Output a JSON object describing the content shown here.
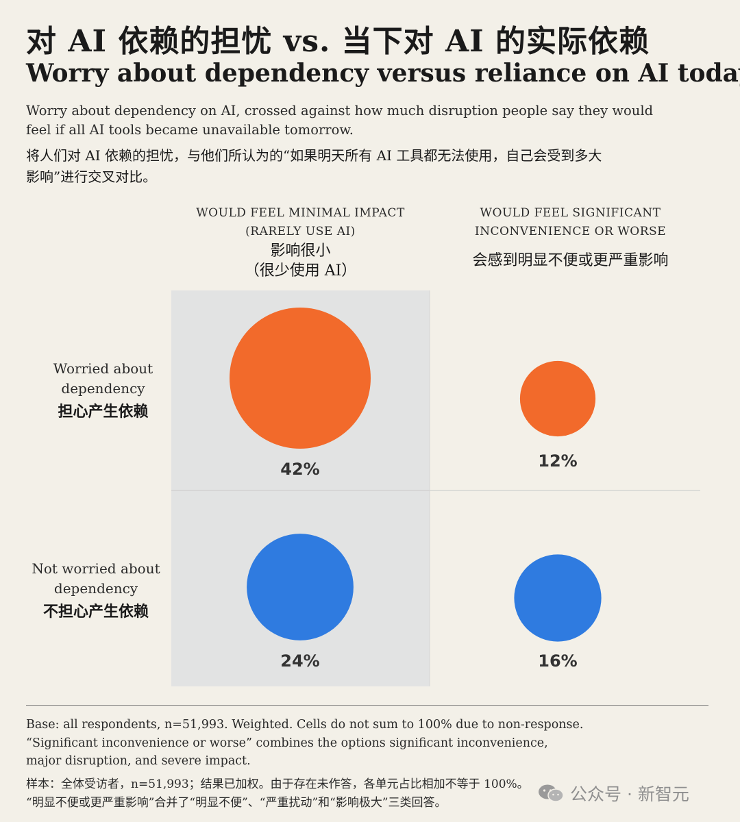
{
  "header": {
    "title_zh": "对 AI 依赖的担忧 vs. 当下对 AI 的实际依赖",
    "title_en": "Worry about dependency versus reliance on AI today",
    "subtitle_en": "Worry about dependency on AI, crossed against how much disruption people say they would feel if all AI tools became unavailable tomorrow.",
    "subtitle_zh": "将人们对 AI 依赖的担忧，与他们所认为的“如果明天所有 AI 工具都无法使用，自己会受到多大影响”进行交叉对比。"
  },
  "chart_data": {
    "type": "bubble-matrix",
    "columns": [
      {
        "en_line1": "WOULD FEEL MINIMAL IMPACT",
        "en_line2": "(RARELY USE AI)",
        "zh_line1": "影响很小",
        "zh_line2": "（很少使用 AI）"
      },
      {
        "en_line1": "WOULD FEEL SIGNIFICANT",
        "en_line2": "INCONVENIENCE OR WORSE",
        "zh_line1": "会感到明显不便或更严重影响"
      }
    ],
    "rows": [
      {
        "en_line1": "Worried about",
        "en_line2": "dependency",
        "zh": "担心产生依赖",
        "color": "#f26a2b"
      },
      {
        "en_line1": "Not worried about",
        "en_line2": "dependency",
        "zh": "不担心产生依赖",
        "color": "#2f7be0"
      }
    ],
    "values": [
      [
        42,
        12
      ],
      [
        24,
        16
      ]
    ],
    "labels": [
      [
        "42%",
        "12%"
      ],
      [
        "24%",
        "16%"
      ]
    ],
    "colors": {
      "worried": "#f26a2b",
      "not_worried": "#2f7be0",
      "highlight_column": "#e2e3e3"
    }
  },
  "footnote": {
    "en_line1": "Base: all respondents, n=51,993. Weighted. Cells do not sum to 100% due to non-response.",
    "en_line2": "“Significant inconvenience or worse” combines the options significant inconvenience,",
    "en_line3": "major disruption, and severe impact.",
    "zh_line1": "样本：全体受访者，n=51,993；结果已加权。由于存在未作答，各单元占比相加不等于 100%。",
    "zh_line2": "“明显不便或更严重影响”合并了“明显不便”、“严重扰动”和“影响极大”三类回答。"
  },
  "watermark": {
    "text": "公众号 · 新智元",
    "icon": "wechat-icon"
  }
}
